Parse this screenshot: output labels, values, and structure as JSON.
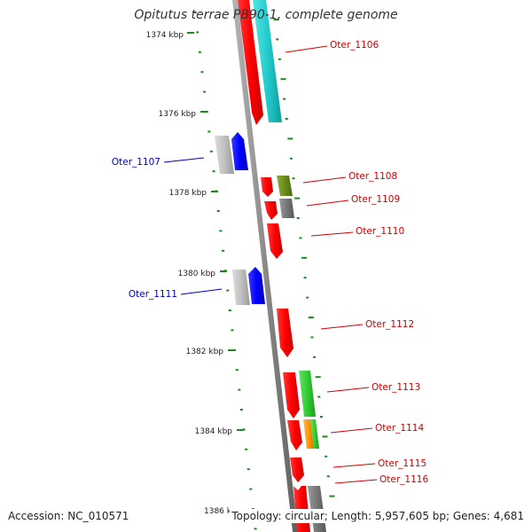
{
  "header": {
    "title": "Opitutus terrae PB90-1, complete genome"
  },
  "footer": {
    "accession": "Accession: NC_010571",
    "summary": "Topology: circular; Length: 5,957,605 bp; Genes: 4,681"
  },
  "colors": {
    "backbone": "#8a8a8a",
    "tick": "#1a8c1a",
    "label_red": "#d00000",
    "label_blue": "#0000c0",
    "gene_red": "#ff0000",
    "gene_cyan": "#22cccc",
    "gene_blue": "#0000ff",
    "gene_grey": "#777777",
    "gene_lightgrey": "#bbbbbb",
    "gene_olive": "#6b8c1e",
    "gene_green": "#33cc33",
    "gene_orange": "#ff9900"
  },
  "axis_labels": [
    {
      "id": "kbp-1374",
      "text": "1374 kbp"
    },
    {
      "id": "kbp-1376",
      "text": "1376 kbp"
    },
    {
      "id": "kbp-1378",
      "text": "1378 kbp"
    },
    {
      "id": "kbp-1380",
      "text": "1380 kbp"
    },
    {
      "id": "kbp-1382",
      "text": "1382 kbp"
    },
    {
      "id": "kbp-1384",
      "text": "1384 kbp"
    },
    {
      "id": "kbp-1386",
      "text": "1386 k"
    }
  ],
  "genes": [
    {
      "id": "Oter_1106",
      "label": "Oter_1106",
      "strand": "+"
    },
    {
      "id": "Oter_1107",
      "label": "Oter_1107",
      "strand": "-"
    },
    {
      "id": "Oter_1108",
      "label": "Oter_1108",
      "strand": "+"
    },
    {
      "id": "Oter_1109",
      "label": "Oter_1109",
      "strand": "+"
    },
    {
      "id": "Oter_1110",
      "label": "Oter_1110",
      "strand": "+"
    },
    {
      "id": "Oter_1111",
      "label": "Oter_1111",
      "strand": "-"
    },
    {
      "id": "Oter_1112",
      "label": "Oter_1112",
      "strand": "+"
    },
    {
      "id": "Oter_1113",
      "label": "Oter_1113",
      "strand": "+"
    },
    {
      "id": "Oter_1114",
      "label": "Oter_1114",
      "strand": "+"
    },
    {
      "id": "Oter_1115",
      "label": "Oter_1115",
      "strand": "+"
    },
    {
      "id": "Oter_1116",
      "label": "Oter_1116",
      "strand": "+"
    }
  ]
}
